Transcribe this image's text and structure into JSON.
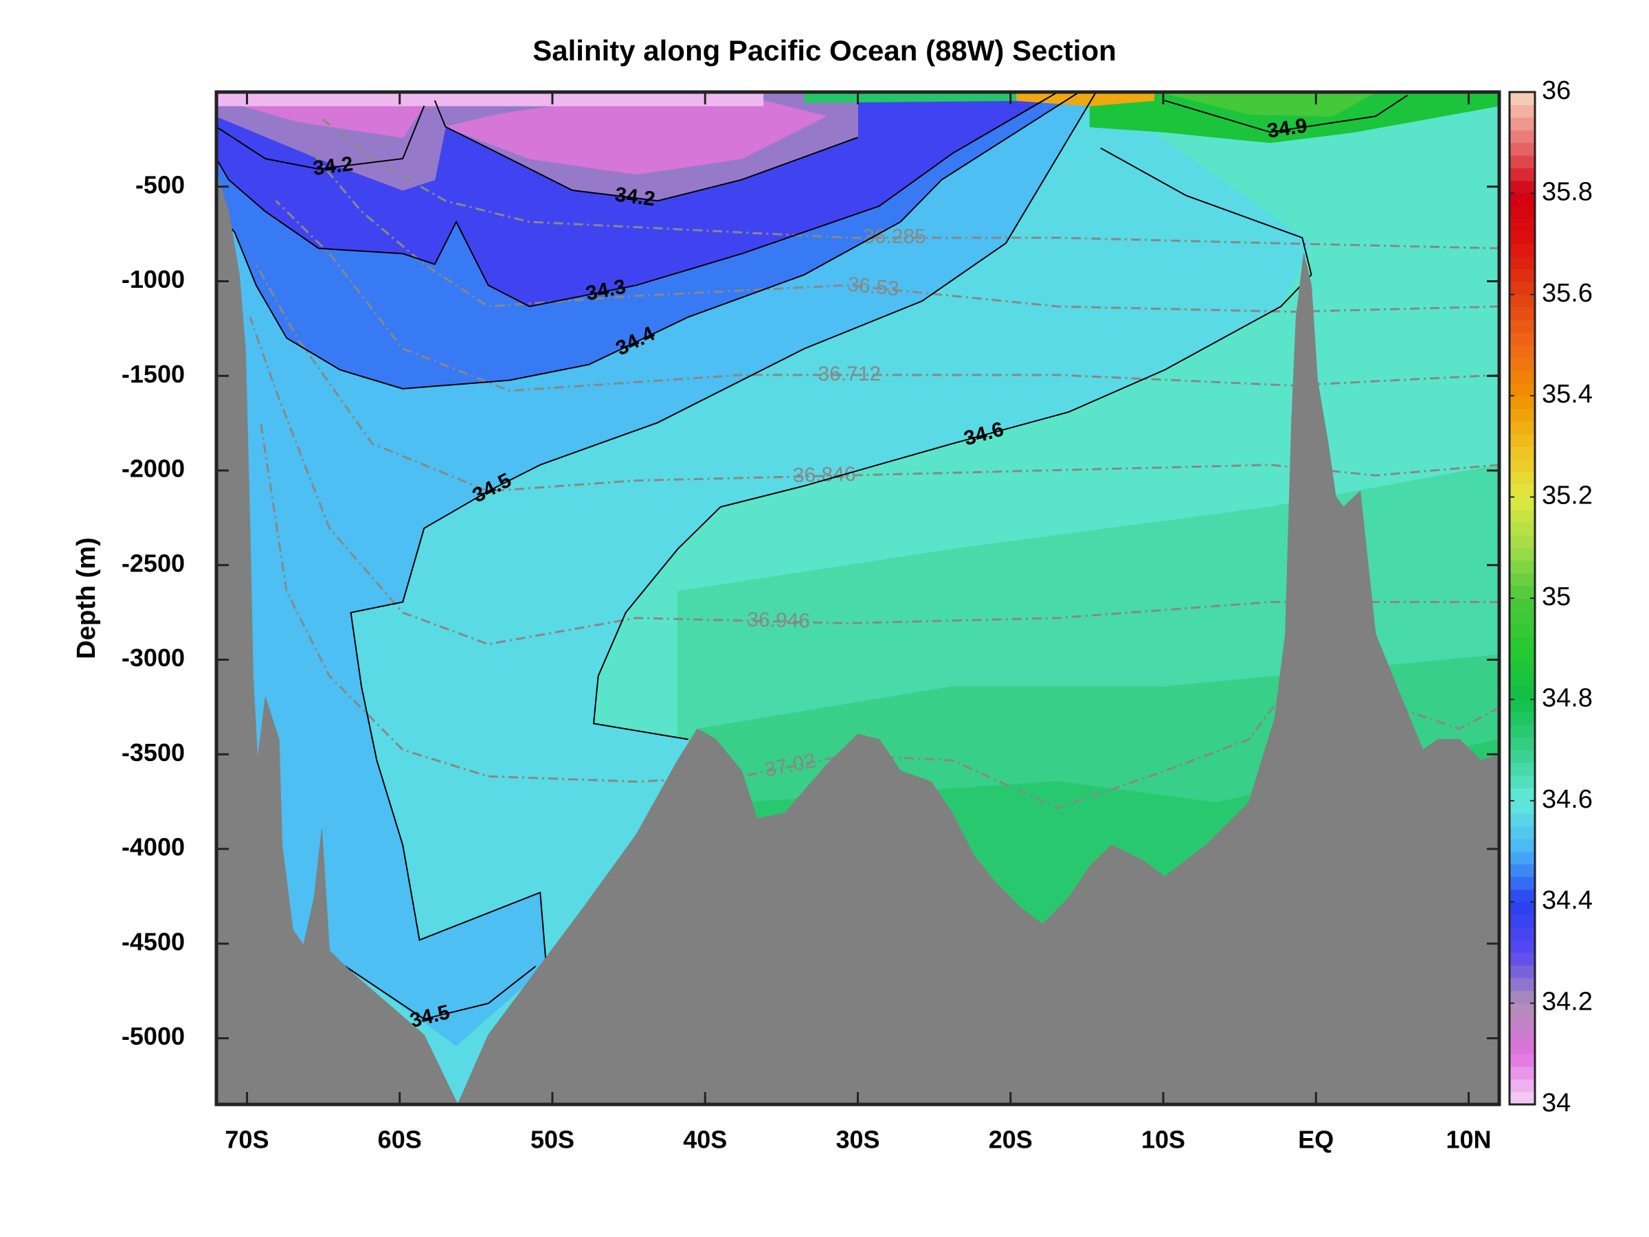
{
  "chart_data": {
    "type": "contour",
    "title": "Salinity along Pacific Ocean (88W) Section",
    "ylabel": "Depth (m)",
    "xlim": [
      -72,
      12
    ],
    "ylim": [
      -5350,
      0
    ],
    "xticks": [
      {
        "value": -70,
        "label": "70S"
      },
      {
        "value": -60,
        "label": "60S"
      },
      {
        "value": -50,
        "label": "50S"
      },
      {
        "value": -40,
        "label": "40S"
      },
      {
        "value": -30,
        "label": "30S"
      },
      {
        "value": -20,
        "label": "20S"
      },
      {
        "value": -10,
        "label": "10S"
      },
      {
        "value": 0,
        "label": "EQ"
      },
      {
        "value": 10,
        "label": "10N"
      }
    ],
    "yticks": [
      -5000,
      -4500,
      -4000,
      -3500,
      -3000,
      -2500,
      -2000,
      -1500,
      -1000,
      -500
    ],
    "clim": [
      34,
      36
    ],
    "cticks": [
      34,
      34.2,
      34.4,
      34.6,
      34.8,
      35,
      35.2,
      35.4,
      35.6,
      35.8,
      36
    ],
    "colormap": [
      "#f6d6f6",
      "#e070e0",
      "#b090b8",
      "#5848f0",
      "#2840f0",
      "#48b4f8",
      "#62eadc",
      "#38cf88",
      "#10bf48",
      "#28c830",
      "#4cc83c",
      "#a0dc48",
      "#e0e840",
      "#f0c020",
      "#f09000",
      "#f06818",
      "#e04010",
      "#e01010",
      "#d00010",
      "#e87070",
      "#f8d8c0"
    ],
    "regions": [
      {
        "value": 34.62,
        "x": [
          -72,
          12,
          12,
          -72
        ],
        "y": [
          0,
          0,
          -5350,
          -5350
        ]
      },
      {
        "value": 34.66,
        "x": [
          -41.8,
          -23.8,
          -3.0,
          12,
          12,
          -41.8
        ],
        "y": [
          -2639,
          -2416,
          -2193,
          -1970,
          -5350,
          -5350
        ]
      },
      {
        "value": 34.7,
        "x": [
          -40.4,
          -23.8,
          -9.9,
          12,
          12,
          -40.4
        ],
        "y": [
          -3365,
          -3142,
          -3142,
          -2974,
          -5350,
          -5350
        ]
      },
      {
        "value": 34.74,
        "x": [
          -37.6,
          -16.9,
          -6.5,
          12,
          12,
          -37.6
        ],
        "y": [
          -3755,
          -3644,
          -3755,
          -3421,
          -5350,
          -5350
        ]
      },
      {
        "value": 34.57,
        "x": [
          -72,
          -14.4,
          -0.3,
          -2.3,
          -9.9,
          -16.2,
          -23.8,
          -33.5,
          -39.0,
          -41.8,
          -45.2,
          -47.0,
          -47.3,
          -41.1,
          -41.8,
          -72
        ],
        "y": [
          0,
          0,
          -798,
          -1133,
          -1468,
          -1691,
          -1858,
          -2081,
          -2193,
          -2416,
          -2751,
          -3086,
          -3337,
          -3421,
          -5350,
          -5350
        ]
      },
      {
        "value": 34.52,
        "x": [
          -72,
          -14.4,
          -20.3,
          -25.8,
          -33.5,
          -43.1,
          -50.8,
          -54.2,
          -58.4,
          -59.8,
          -63.2,
          -62.5,
          -61.5,
          -59.8,
          -58.7,
          -50.8,
          -50.4,
          -56.3,
          -63.9,
          -72
        ],
        "y": [
          0,
          0,
          -798,
          -1105,
          -1356,
          -1747,
          -1970,
          -2109,
          -2305,
          -2695,
          -2751,
          -3142,
          -3532,
          -3979,
          -4481,
          -4230,
          -4620,
          -5039,
          -4592,
          -4425
        ]
      },
      {
        "value": 34.45,
        "x": [
          -72,
          -15.5,
          -24.5,
          -27.2,
          -33.5,
          -41.1,
          -47.6,
          -52.8,
          -59.8,
          -63.9,
          -67.4,
          -69.4,
          -70.8,
          -72
        ],
        "y": [
          0,
          0,
          -463,
          -686,
          -965,
          -1189,
          -1440,
          -1523,
          -1568,
          -1468,
          -1300,
          -1021,
          -742,
          -631
        ]
      },
      {
        "value": 34.35,
        "x": [
          -72,
          -16.9,
          -23.8,
          -28.6,
          -37.6,
          -44.5,
          -51.5,
          -54.2,
          -56.3,
          -57.7,
          -59.8,
          -65.3,
          -68.8,
          -71.2,
          -72
        ],
        "y": [
          0,
          0,
          -324,
          -603,
          -854,
          -1021,
          -1133,
          -1021,
          -686,
          -910,
          -854,
          -826,
          -631,
          -463,
          -352
        ]
      },
      {
        "value": 34.23,
        "x": [
          -72,
          -30.0,
          -30.0,
          -37.6,
          -43.1,
          -48.7,
          -54.2,
          -57.0,
          -57.7,
          -59.8,
          -65.3,
          -72
        ],
        "y": [
          0,
          0,
          -240,
          -463,
          -575,
          -519,
          -296,
          -184,
          -463,
          -519,
          -352,
          -128
        ]
      },
      {
        "value": 34.12,
        "x": [
          -57.0,
          -53.5,
          -47.3,
          -37.6,
          -32.1,
          -37.6,
          -44.5,
          -51.5
        ],
        "y": [
          -184,
          -117,
          -45,
          -17,
          -128,
          -352,
          -435,
          -352
        ]
      },
      {
        "value": 34.12,
        "x": [
          -71.5,
          -66.7,
          -59.8,
          -58.4,
          -71.5
        ],
        "y": [
          -45,
          -156,
          -240,
          -73,
          -6
        ]
      },
      {
        "value": 34.03,
        "x": [
          -72,
          -36.2,
          -36.2,
          -72
        ],
        "y": [
          0,
          0,
          -73,
          -73
        ]
      },
      {
        "value": 34.85,
        "x": [
          -14.8,
          -9.9,
          -3.0,
          2.5,
          12,
          12,
          -14.8
        ],
        "y": [
          -184,
          -212,
          -268,
          -212,
          -73,
          0,
          0
        ]
      },
      {
        "value": 34.98,
        "x": [
          -9.9,
          -3.0,
          3.9,
          1.1,
          -4.4
        ],
        "y": [
          -6,
          0,
          0,
          -128,
          -117
        ]
      },
      {
        "value": 34.75,
        "x": [
          -33.5,
          -19.6,
          -19.6,
          -33.5
        ],
        "y": [
          0,
          0,
          -45,
          -56
        ]
      },
      {
        "value": 35.35,
        "x": [
          -19.6,
          -10.6,
          -10.6,
          -14.8,
          -19.6
        ],
        "y": [
          0,
          0,
          -45,
          -73,
          -45
        ]
      }
    ],
    "contours": [
      {
        "level": 34.2,
        "x": [
          -30.0,
          -37.6,
          -43.1,
          -48.7,
          -54.2,
          -57.0,
          -57.7
        ],
        "y": [
          -240,
          -463,
          -575,
          -519,
          -296,
          -184,
          -45
        ]
      },
      {
        "level": 34.2,
        "x": [
          -72,
          -68.8,
          -65.3,
          -59.8,
          -58.4
        ],
        "y": [
          -184,
          -352,
          -407,
          -352,
          -73
        ]
      },
      {
        "level": 34.3,
        "x": [
          -16.9,
          -23.8,
          -28.6,
          -37.6,
          -44.5,
          -51.5,
          -54.2,
          -56.3,
          -57.7,
          -59.8,
          -65.3,
          -68.8,
          -71.2,
          -72
        ],
        "y": [
          0,
          -324,
          -603,
          -854,
          -1021,
          -1133,
          -1021,
          -686,
          -910,
          -854,
          -826,
          -631,
          -463,
          -352
        ]
      },
      {
        "level": 34.4,
        "x": [
          -15.5,
          -24.5,
          -27.2,
          -33.5,
          -41.1,
          -47.6,
          -52.8,
          -59.8,
          -63.9,
          -67.4,
          -69.4,
          -70.8,
          -72
        ],
        "y": [
          0,
          -463,
          -686,
          -965,
          -1189,
          -1440,
          -1523,
          -1568,
          -1468,
          -1300,
          -1021,
          -742,
          -631
        ]
      },
      {
        "level": 34.5,
        "x": [
          -14.4,
          -20.3,
          -25.8,
          -33.5,
          -43.1,
          -50.8,
          -54.2,
          -58.4,
          -59.8,
          -63.2,
          -62.5,
          -61.5,
          -59.8,
          -58.7,
          -50.8,
          -50.4
        ],
        "y": [
          0,
          -798,
          -1105,
          -1356,
          -1747,
          -1970,
          -2109,
          -2305,
          -2695,
          -2751,
          -3142,
          -3532,
          -3979,
          -4481,
          -4230,
          -4620
        ]
      },
      {
        "level": 34.5,
        "x": [
          -64.6,
          -58.4,
          -54.2,
          -51.1
        ],
        "y": [
          -4564,
          -4899,
          -4816,
          -4620
        ]
      },
      {
        "level": 34.6,
        "x": [
          -14.1,
          -8.5,
          -0.9,
          -0.3,
          -2.3,
          -9.9,
          -16.2,
          -23.8,
          -33.5,
          -39.0,
          -41.8,
          -45.2,
          -47.0,
          -47.3,
          -41.1
        ],
        "y": [
          -296,
          -547,
          -770,
          -965,
          -1133,
          -1468,
          -1691,
          -1858,
          -2081,
          -2193,
          -2416,
          -2751,
          -3086,
          -3337,
          -3421
        ]
      },
      {
        "level": 34.9,
        "x": [
          -9.9,
          -3.0,
          3.9,
          6.0
        ],
        "y": [
          -45,
          -212,
          -128,
          -17
        ]
      }
    ],
    "contour_color": "#000000",
    "isopycnals": [
      {
        "level": 36.285,
        "x": [
          12,
          -3.0,
          -16.9,
          -30.7,
          -44.5,
          -51.5,
          -57.0,
          -61.8,
          -65.3
        ],
        "y": [
          -826,
          -798,
          -770,
          -770,
          -714,
          -686,
          -575,
          -352,
          -128
        ]
      },
      {
        "level": 36.53,
        "x": [
          12,
          -1.6,
          -16.9,
          -30.7,
          -44.5,
          -54.2,
          -58.4,
          -62.5,
          -66.0
        ],
        "y": [
          -1133,
          -1161,
          -1133,
          -1021,
          -1077,
          -1133,
          -910,
          -631,
          -296
        ]
      },
      {
        "level": 36.712,
        "x": [
          12,
          -1.6,
          -16.9,
          -37.6,
          -52.8,
          -59.8,
          -64.6,
          -68.1
        ],
        "y": [
          -1495,
          -1551,
          -1495,
          -1495,
          -1579,
          -1356,
          -854,
          -575
        ]
      },
      {
        "level": 36.846,
        "x": [
          12,
          3.9,
          -3.0,
          -16.9,
          -30.7,
          -44.5,
          -54.2,
          -61.8,
          -66.7,
          -69.4
        ],
        "y": [
          -1970,
          -2026,
          -1970,
          -1998,
          -2026,
          -2053,
          -2109,
          -1858,
          -1300,
          -910
        ]
      },
      {
        "level": 36.946,
        "x": [
          12,
          -3.0,
          -16.9,
          -30.7,
          -44.5,
          -54.2,
          -59.8,
          -64.6,
          -68.1,
          -69.8
        ],
        "y": [
          -2695,
          -2695,
          -2779,
          -2807,
          -2779,
          -2918,
          -2751,
          -2305,
          -1579,
          -1189
        ]
      },
      {
        "level": 37.02,
        "x": [
          12,
          9.4,
          5.3,
          -2.3,
          -4.4,
          -9.9,
          -16.9,
          -23.8,
          -30.7,
          -37.6,
          -44.5,
          -54.2,
          -59.8,
          -64.6,
          -67.4,
          -69.1
        ],
        "y": [
          -3253,
          -3365,
          -3253,
          -3197,
          -3421,
          -3588,
          -3783,
          -3532,
          -3504,
          -3616,
          -3644,
          -3616,
          -3476,
          -3086,
          -2639,
          -1747
        ]
      }
    ],
    "isopycnal_color": "#888888",
    "bathymetry": {
      "color": "#808080",
      "x": [
        -72,
        -71.2,
        -70.5,
        -70.1,
        -69.8,
        -69.6,
        -69.3,
        -68.8,
        -67.9,
        -67.7,
        -67.0,
        -66.3,
        -65.6,
        -65.1,
        -64.6,
        -63.2,
        -58.4,
        -56.2,
        -54.2,
        -51.1,
        -48.0,
        -44.5,
        -41.8,
        -40.5,
        -39.3,
        -37.6,
        -36.6,
        -34.8,
        -32.1,
        -30.0,
        -28.6,
        -27.2,
        -25.2,
        -23.8,
        -22.4,
        -21.0,
        -19.3,
        -17.9,
        -16.2,
        -14.8,
        -13.4,
        -11.3,
        -9.9,
        -7.2,
        -4.4,
        -2.7,
        -2.0,
        -1.6,
        -1.3,
        -0.8,
        -0.3,
        0.1,
        0.8,
        1.3,
        1.8,
        2.9,
        3.9,
        5.3,
        7.0,
        8.0,
        9.4,
        10.8,
        12,
        12,
        -72
      ],
      "y": [
        -435,
        -631,
        -965,
        -1356,
        -2305,
        -3086,
        -3532,
        -3197,
        -3421,
        -3979,
        -4425,
        -4509,
        -4258,
        -3895,
        -4537,
        -4648,
        -4983,
        -5350,
        -4983,
        -4648,
        -4313,
        -3923,
        -3532,
        -3365,
        -3421,
        -3588,
        -3839,
        -3811,
        -3560,
        -3393,
        -3421,
        -3588,
        -3644,
        -3811,
        -4034,
        -4174,
        -4313,
        -4397,
        -4258,
        -4090,
        -3979,
        -4062,
        -4146,
        -3979,
        -3755,
        -3309,
        -2863,
        -1747,
        -1189,
        -854,
        -1021,
        -1523,
        -1858,
        -2137,
        -2193,
        -2109,
        -2863,
        -3142,
        -3476,
        -3421,
        -3421,
        -3532,
        -3504,
        -5350,
        -5350
      ]
    }
  }
}
